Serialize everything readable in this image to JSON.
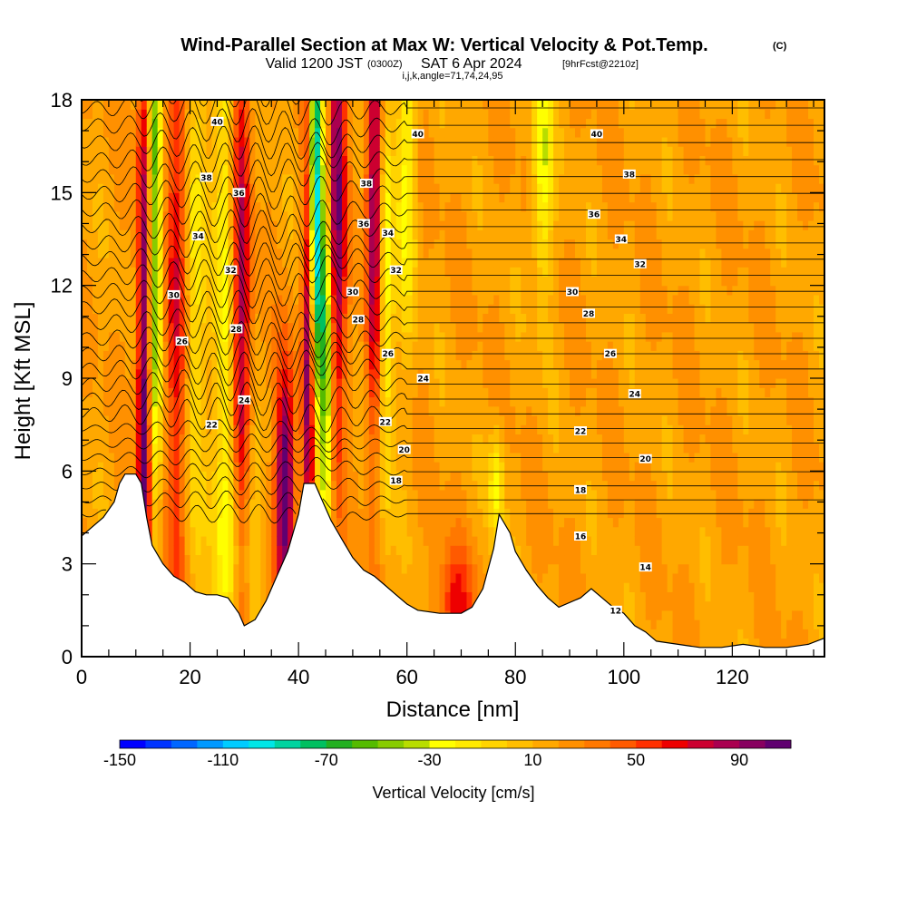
{
  "title": {
    "main": "Wind-Parallel Section at Max W: Vertical Velocity & Pot.Temp.",
    "copyright": "(C)",
    "valid_prefix": "Valid 1200 JST",
    "valid_utc": "(0300Z)",
    "valid_date": "SAT 6 Apr 2024",
    "forecast": "[9hrFcst@2210z]",
    "indices": "i,j,k,angle=71,74,24,95"
  },
  "chart_data": {
    "type": "heatmap",
    "xlabel": "Distance [nm]",
    "ylabel": "Height [Kft MSL]",
    "xlim": [
      0,
      137
    ],
    "ylim": [
      0,
      18
    ],
    "x_ticks": [
      0,
      20,
      40,
      60,
      80,
      100,
      120
    ],
    "y_ticks": [
      0,
      3,
      6,
      9,
      12,
      15,
      18
    ],
    "colorbar": {
      "title": "Vertical Velocity [cm/s]",
      "min": -150,
      "max": 110,
      "step": 10,
      "tick_labels": [
        "-150",
        "-110",
        "-70",
        "-30",
        "10",
        "50",
        "90"
      ],
      "colors": [
        "#0000ff",
        "#0033ff",
        "#0066ff",
        "#0099ff",
        "#00ccff",
        "#00e6e6",
        "#00d4a0",
        "#00c060",
        "#22b020",
        "#55bb00",
        "#88cc00",
        "#b8dd00",
        "#ffff00",
        "#ffea00",
        "#ffd400",
        "#ffbe00",
        "#ffa800",
        "#ff9000",
        "#ff7800",
        "#ff5a00",
        "#ff3000",
        "#ee0000",
        "#cc0030",
        "#aa0050",
        "#880060",
        "#600070"
      ]
    },
    "terrain": [
      [
        0,
        3.9
      ],
      [
        2,
        4.2
      ],
      [
        4,
        4.5
      ],
      [
        6,
        5.0
      ],
      [
        7,
        5.6
      ],
      [
        8,
        5.9
      ],
      [
        10,
        5.9
      ],
      [
        11,
        5.6
      ],
      [
        12,
        4.5
      ],
      [
        13,
        3.6
      ],
      [
        15,
        3.0
      ],
      [
        17,
        2.6
      ],
      [
        19,
        2.4
      ],
      [
        21,
        2.1
      ],
      [
        23,
        2.0
      ],
      [
        25,
        2.0
      ],
      [
        27,
        1.9
      ],
      [
        29,
        1.4
      ],
      [
        30,
        1.0
      ],
      [
        32,
        1.2
      ],
      [
        34,
        1.8
      ],
      [
        36,
        2.6
      ],
      [
        38,
        3.4
      ],
      [
        40,
        4.6
      ],
      [
        41,
        5.6
      ],
      [
        43,
        5.6
      ],
      [
        44,
        5.2
      ],
      [
        46,
        4.4
      ],
      [
        48,
        3.8
      ],
      [
        50,
        3.2
      ],
      [
        52,
        2.8
      ],
      [
        54,
        2.6
      ],
      [
        56,
        2.3
      ],
      [
        58,
        2.0
      ],
      [
        60,
        1.7
      ],
      [
        62,
        1.5
      ],
      [
        66,
        1.4
      ],
      [
        70,
        1.4
      ],
      [
        72,
        1.6
      ],
      [
        74,
        2.2
      ],
      [
        76,
        3.5
      ],
      [
        77,
        4.6
      ],
      [
        79,
        4.0
      ],
      [
        80,
        3.4
      ],
      [
        82,
        2.8
      ],
      [
        84,
        2.3
      ],
      [
        86,
        1.9
      ],
      [
        88,
        1.6
      ],
      [
        92,
        1.9
      ],
      [
        94,
        2.2
      ],
      [
        96,
        1.9
      ],
      [
        98,
        1.6
      ],
      [
        100,
        1.4
      ],
      [
        102,
        1.0
      ],
      [
        104,
        0.8
      ],
      [
        106,
        0.5
      ],
      [
        110,
        0.4
      ],
      [
        114,
        0.3
      ],
      [
        118,
        0.3
      ],
      [
        122,
        0.4
      ],
      [
        126,
        0.3
      ],
      [
        130,
        0.3
      ],
      [
        134,
        0.4
      ],
      [
        137,
        0.6
      ]
    ],
    "w_features": [
      {
        "x": 11.5,
        "z": 8,
        "amp": 95,
        "sx": 0.9,
        "sz": 9
      },
      {
        "x": 13.5,
        "z": 14,
        "amp": -80,
        "sx": 0.9,
        "sz": 7
      },
      {
        "x": 17.5,
        "z": 12,
        "amp": 55,
        "sx": 1.3,
        "sz": 9
      },
      {
        "x": 21,
        "z": 12,
        "amp": -35,
        "sx": 1.4,
        "sz": 8
      },
      {
        "x": 26.5,
        "z": 13,
        "amp": -40,
        "sx": 1.3,
        "sz": 8
      },
      {
        "x": 29.5,
        "z": 10,
        "amp": 70,
        "sx": 1.2,
        "sz": 9
      },
      {
        "x": 29,
        "z": 4,
        "amp": -45,
        "sx": 2.5,
        "sz": 2.2
      },
      {
        "x": 37.5,
        "z": 5.5,
        "amp": 105,
        "sx": 1.2,
        "sz": 2.8
      },
      {
        "x": 42,
        "z": 10,
        "amp": 95,
        "sx": 0.8,
        "sz": 6
      },
      {
        "x": 43,
        "z": 15,
        "amp": -140,
        "sx": 0.8,
        "sz": 5
      },
      {
        "x": 45,
        "z": 10,
        "amp": -85,
        "sx": 0.9,
        "sz": 5
      },
      {
        "x": 47,
        "z": 15,
        "amp": 85,
        "sx": 1.2,
        "sz": 6
      },
      {
        "x": 54,
        "z": 15,
        "amp": 80,
        "sx": 1.1,
        "sz": 6
      },
      {
        "x": 56,
        "z": 12,
        "amp": -55,
        "sx": 1.0,
        "sz": 5
      },
      {
        "x": 60,
        "z": 16,
        "amp": -40,
        "sx": 1.3,
        "sz": 4
      },
      {
        "x": 69,
        "z": 1.6,
        "amp": 45,
        "sx": 2.5,
        "sz": 1.3
      },
      {
        "x": 76.5,
        "z": 5.5,
        "amp": -40,
        "sx": 1.0,
        "sz": 1.4
      },
      {
        "x": 85,
        "z": 16,
        "amp": -50,
        "sx": 1.3,
        "sz": 3
      }
    ],
    "theta_contours": {
      "base_levels": [
        11,
        12,
        13,
        14,
        15,
        16,
        17,
        18,
        19,
        20,
        21,
        22,
        23,
        24,
        25,
        26,
        27,
        28,
        29,
        30,
        31,
        32,
        33,
        34,
        35,
        36,
        37,
        38,
        39,
        40,
        41
      ],
      "labels": [
        {
          "text": "40",
          "x": 25,
          "z": 17.3
        },
        {
          "text": "38",
          "x": 23,
          "z": 15.5
        },
        {
          "text": "36",
          "x": 29,
          "z": 15.0
        },
        {
          "text": "34",
          "x": 21.5,
          "z": 13.6
        },
        {
          "text": "32",
          "x": 27.5,
          "z": 12.5
        },
        {
          "text": "30",
          "x": 17,
          "z": 11.7
        },
        {
          "text": "28",
          "x": 28.5,
          "z": 10.6
        },
        {
          "text": "26",
          "x": 18.5,
          "z": 10.2
        },
        {
          "text": "24",
          "x": 30,
          "z": 8.3
        },
        {
          "text": "22",
          "x": 24,
          "z": 7.5
        },
        {
          "text": "40",
          "x": 62,
          "z": 16.9
        },
        {
          "text": "38",
          "x": 52.5,
          "z": 15.3
        },
        {
          "text": "36",
          "x": 52,
          "z": 14.0
        },
        {
          "text": "34",
          "x": 56.5,
          "z": 13.7
        },
        {
          "text": "32",
          "x": 58,
          "z": 12.5
        },
        {
          "text": "30",
          "x": 50,
          "z": 11.8
        },
        {
          "text": "28",
          "x": 51,
          "z": 10.9
        },
        {
          "text": "26",
          "x": 56.5,
          "z": 9.8
        },
        {
          "text": "24",
          "x": 63,
          "z": 9.0
        },
        {
          "text": "22",
          "x": 56,
          "z": 7.6
        },
        {
          "text": "20",
          "x": 59.5,
          "z": 6.7
        },
        {
          "text": "18",
          "x": 58,
          "z": 5.7
        },
        {
          "text": "40",
          "x": 95,
          "z": 16.9
        },
        {
          "text": "38",
          "x": 101,
          "z": 15.6
        },
        {
          "text": "36",
          "x": 94.5,
          "z": 14.3
        },
        {
          "text": "34",
          "x": 99.5,
          "z": 13.5
        },
        {
          "text": "32",
          "x": 103,
          "z": 12.7
        },
        {
          "text": "30",
          "x": 90.5,
          "z": 11.8
        },
        {
          "text": "28",
          "x": 93.5,
          "z": 11.1
        },
        {
          "text": "26",
          "x": 97.5,
          "z": 9.8
        },
        {
          "text": "24",
          "x": 102,
          "z": 8.5
        },
        {
          "text": "22",
          "x": 92,
          "z": 7.3
        },
        {
          "text": "20",
          "x": 104,
          "z": 6.4
        },
        {
          "text": "18",
          "x": 92,
          "z": 5.4
        },
        {
          "text": "16",
          "x": 92,
          "z": 3.9
        },
        {
          "text": "14",
          "x": 104,
          "z": 2.9
        },
        {
          "text": "12",
          "x": 98.5,
          "z": 1.5
        }
      ]
    }
  }
}
